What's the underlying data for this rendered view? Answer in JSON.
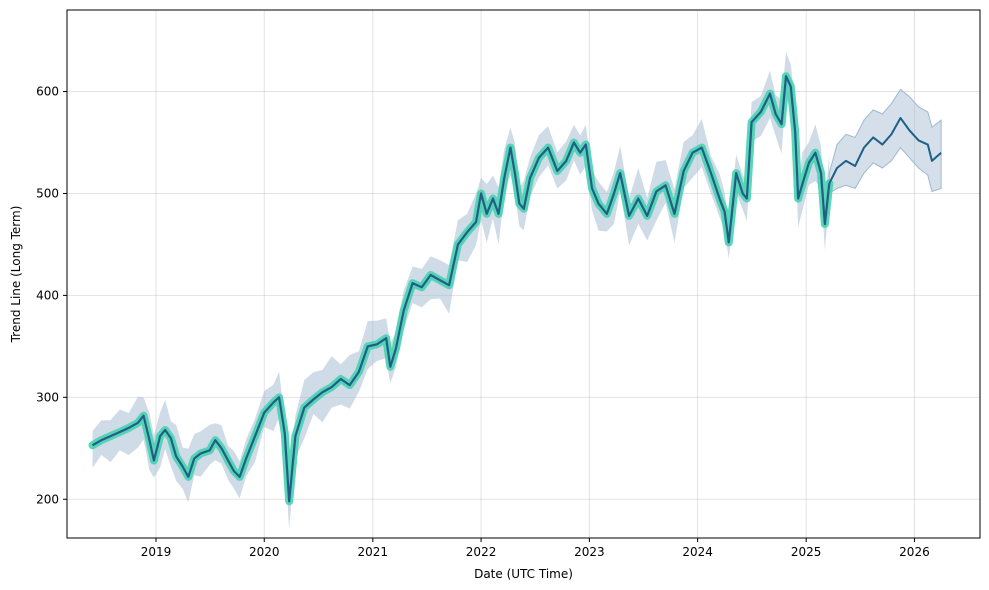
{
  "chart_data": {
    "type": "line",
    "title": "",
    "xlabel": "Date (UTC Time)",
    "ylabel": "Trend Line (Long Term)",
    "x_ticks": [
      "2019",
      "2020",
      "2021",
      "2022",
      "2023",
      "2024",
      "2025",
      "2026"
    ],
    "y_ticks": [
      200,
      300,
      400,
      500,
      600
    ],
    "xlim": [
      "2018-03-07",
      "2026-08-10"
    ],
    "ylim": [
      162,
      680
    ],
    "grid": true,
    "legend": "none",
    "colors": {
      "trend_line": "#1f5f86",
      "observed_band": "#48d1b0",
      "uncertainty_band": "#9fb9cf"
    },
    "series": [
      {
        "role": "historical_trend",
        "points": [
          [
            "2018-06-01",
            253
          ],
          [
            "2018-07-01",
            258
          ],
          [
            "2018-08-01",
            262
          ],
          [
            "2018-09-01",
            266
          ],
          [
            "2018-10-01",
            270
          ],
          [
            "2018-11-01",
            275
          ],
          [
            "2018-11-20",
            282
          ],
          [
            "2018-12-10",
            258
          ],
          [
            "2018-12-25",
            238
          ],
          [
            "2019-01-15",
            262
          ],
          [
            "2019-02-01",
            268
          ],
          [
            "2019-02-20",
            260
          ],
          [
            "2019-03-10",
            242
          ],
          [
            "2019-04-01",
            232
          ],
          [
            "2019-04-20",
            222
          ],
          [
            "2019-05-10",
            240
          ],
          [
            "2019-06-01",
            245
          ],
          [
            "2019-07-01",
            248
          ],
          [
            "2019-07-20",
            258
          ],
          [
            "2019-08-10",
            250
          ],
          [
            "2019-09-01",
            238
          ],
          [
            "2019-09-20",
            228
          ],
          [
            "2019-10-10",
            222
          ],
          [
            "2019-11-01",
            240
          ],
          [
            "2019-12-01",
            262
          ],
          [
            "2020-01-01",
            285
          ],
          [
            "2020-02-01",
            295
          ],
          [
            "2020-02-20",
            300
          ],
          [
            "2020-03-10",
            265
          ],
          [
            "2020-03-25",
            198
          ],
          [
            "2020-04-15",
            262
          ],
          [
            "2020-05-15",
            290
          ],
          [
            "2020-06-15",
            298
          ],
          [
            "2020-07-15",
            305
          ],
          [
            "2020-08-15",
            310
          ],
          [
            "2020-09-15",
            318
          ],
          [
            "2020-10-15",
            312
          ],
          [
            "2020-11-15",
            325
          ],
          [
            "2020-12-15",
            350
          ],
          [
            "2021-01-15",
            352
          ],
          [
            "2021-02-15",
            358
          ],
          [
            "2021-03-01",
            330
          ],
          [
            "2021-03-20",
            348
          ],
          [
            "2021-04-15",
            385
          ],
          [
            "2021-05-15",
            412
          ],
          [
            "2021-06-15",
            408
          ],
          [
            "2021-07-15",
            420
          ],
          [
            "2021-08-15",
            415
          ],
          [
            "2021-09-15",
            410
          ],
          [
            "2021-10-15",
            450
          ],
          [
            "2021-11-15",
            462
          ],
          [
            "2021-12-15",
            472
          ],
          [
            "2022-01-01",
            500
          ],
          [
            "2022-01-20",
            480
          ],
          [
            "2022-02-10",
            495
          ],
          [
            "2022-03-01",
            480
          ],
          [
            "2022-03-20",
            515
          ],
          [
            "2022-04-10",
            545
          ],
          [
            "2022-04-25",
            520
          ],
          [
            "2022-05-10",
            490
          ],
          [
            "2022-05-25",
            485
          ],
          [
            "2022-06-15",
            515
          ],
          [
            "2022-07-15",
            535
          ],
          [
            "2022-08-15",
            545
          ],
          [
            "2022-09-15",
            522
          ],
          [
            "2022-10-15",
            532
          ],
          [
            "2022-11-10",
            550
          ],
          [
            "2022-12-01",
            540
          ],
          [
            "2022-12-20",
            548
          ],
          [
            "2023-01-10",
            505
          ],
          [
            "2023-02-01",
            490
          ],
          [
            "2023-03-01",
            480
          ],
          [
            "2023-03-25",
            500
          ],
          [
            "2023-04-15",
            520
          ],
          [
            "2023-05-15",
            478
          ],
          [
            "2023-06-15",
            495
          ],
          [
            "2023-07-15",
            478
          ],
          [
            "2023-08-15",
            502
          ],
          [
            "2023-09-15",
            508
          ],
          [
            "2023-10-15",
            480
          ],
          [
            "2023-11-15",
            522
          ],
          [
            "2023-12-15",
            540
          ],
          [
            "2024-01-15",
            545
          ],
          [
            "2024-02-15",
            520
          ],
          [
            "2024-03-15",
            495
          ],
          [
            "2024-04-01",
            482
          ],
          [
            "2024-04-15",
            452
          ],
          [
            "2024-05-10",
            520
          ],
          [
            "2024-06-01",
            500
          ],
          [
            "2024-06-15",
            495
          ],
          [
            "2024-07-01",
            570
          ],
          [
            "2024-08-01",
            580
          ],
          [
            "2024-09-01",
            598
          ],
          [
            "2024-09-20",
            578
          ],
          [
            "2024-10-10",
            568
          ],
          [
            "2024-10-25",
            615
          ],
          [
            "2024-11-10",
            605
          ],
          [
            "2024-11-25",
            560
          ],
          [
            "2024-12-05",
            495
          ],
          [
            "2024-12-20",
            510
          ],
          [
            "2025-01-10",
            530
          ],
          [
            "2025-02-01",
            540
          ],
          [
            "2025-02-20",
            520
          ],
          [
            "2025-03-05",
            470
          ],
          [
            "2025-03-20",
            510
          ]
        ]
      },
      {
        "role": "forecast",
        "points": [
          [
            "2025-03-20",
            510
          ],
          [
            "2025-04-15",
            525
          ],
          [
            "2025-05-15",
            532
          ],
          [
            "2025-06-15",
            527
          ],
          [
            "2025-07-15",
            545
          ],
          [
            "2025-08-15",
            555
          ],
          [
            "2025-09-15",
            548
          ],
          [
            "2025-10-15",
            558
          ],
          [
            "2025-11-15",
            574
          ],
          [
            "2025-12-15",
            562
          ],
          [
            "2026-01-15",
            552
          ],
          [
            "2026-02-15",
            548
          ],
          [
            "2026-03-01",
            532
          ],
          [
            "2026-04-01",
            540
          ]
        ],
        "lower": [
          500,
          505,
          508,
          505,
          520,
          530,
          525,
          532,
          545,
          535,
          525,
          518,
          502,
          505
        ],
        "upper": [
          520,
          548,
          558,
          555,
          572,
          582,
          578,
          588,
          602,
          595,
          585,
          580,
          565,
          572
        ]
      }
    ]
  }
}
